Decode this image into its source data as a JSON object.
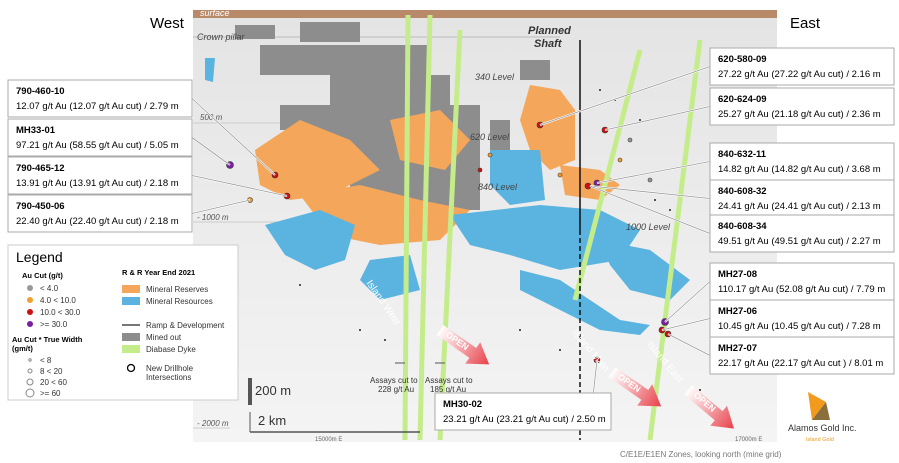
{
  "header": {
    "west": "West",
    "east": "East"
  },
  "section_labels": {
    "surface": "surface",
    "crown_pillar": "Crown pillar",
    "shaft": [
      "Planned",
      "Shaft"
    ],
    "levels": [
      "340 Level",
      "620 Level",
      "840 Level",
      "1000 Level"
    ],
    "depths": [
      "500 m",
      "- 1000 m",
      "- 2000 m"
    ],
    "zones": [
      "Island West",
      "Island Main",
      "Island East"
    ],
    "open": [
      "OPEN",
      "OPEN",
      "OPEN"
    ],
    "assays": [
      [
        "Assays cut to",
        "228 g/t Au"
      ],
      [
        "Assays cut to",
        "185 g/t Au"
      ]
    ],
    "scale": [
      "200 m",
      "2 km"
    ],
    "eastings": [
      "15000m E",
      "17000m E"
    ]
  },
  "callouts": [
    {
      "id": "790-460-10",
      "text": "12.07 g/t Au (12.07 g/t Au cut) / 2.79 m"
    },
    {
      "id": "MH33-01",
      "text": "97.21 g/t Au (58.55 g/t Au cut) / 5.05 m"
    },
    {
      "id": "790-465-12",
      "text": "13.91 g/t Au (13.91 g/t Au cut) / 2.18 m"
    },
    {
      "id": "790-450-06",
      "text": "22.40 g/t Au (22.40 g/t Au cut) / 2.18 m"
    },
    {
      "id": "620-580-09",
      "text": "27.22 g/t Au (27.22 g/t Au cut) / 2.16 m"
    },
    {
      "id": "620-624-09",
      "text": "25.27 g/t Au (21.18 g/t Au cut) / 2.36 m"
    },
    {
      "id": "840-632-11",
      "text": "14.82 g/t Au (14.82 g/t Au cut) / 3.68 m"
    },
    {
      "id": "840-608-32",
      "text": "24.41 g/t Au (24.41 g/t Au cut) / 2.13 m"
    },
    {
      "id": "840-608-34",
      "text": "49.51 g/t Au (49.51 g/t Au cut) / 2.27 m"
    },
    {
      "id": "MH27-08",
      "text": "110.17 g/t Au (52.08 g/t Au cut) / 7.79 m"
    },
    {
      "id": "MH27-06",
      "text": "10.45 g/t Au (10.45 g/t Au cut) / 7.28 m"
    },
    {
      "id": "MH27-07",
      "text": "22.17 g/t Au (22.17 g/t Au cut ) / 8.01 m"
    },
    {
      "id": "MH30-02",
      "text": "23.21 g/t Au (23.21 g/t Au cut) / 2.50 m"
    }
  ],
  "legend": {
    "title": "Legend",
    "grade": {
      "title": "Au Cut (g/t)",
      "items": [
        "< 4.0",
        "4.0 < 10.0",
        "10.0 < 30.0",
        ">= 30.0"
      ]
    },
    "width": {
      "title": [
        "Au Cut * True Width",
        "(gm/t)"
      ],
      "items": [
        "< 8",
        "8 < 20",
        "20 < 60",
        ">= 60"
      ]
    },
    "rr": {
      "title": "R & R Year End 2021",
      "items": [
        "Mineral Reserves",
        "Mineral Resources",
        "Ramp & Development",
        "Mined out",
        "Diabase Dyke"
      ],
      "new": [
        "New Drillhole",
        "Intersections"
      ]
    }
  },
  "footer": {
    "caption": "C/E1E/E1EN Zones, looking north (mine grid)",
    "company": "Alamos Gold Inc.",
    "project": "Island Gold"
  }
}
